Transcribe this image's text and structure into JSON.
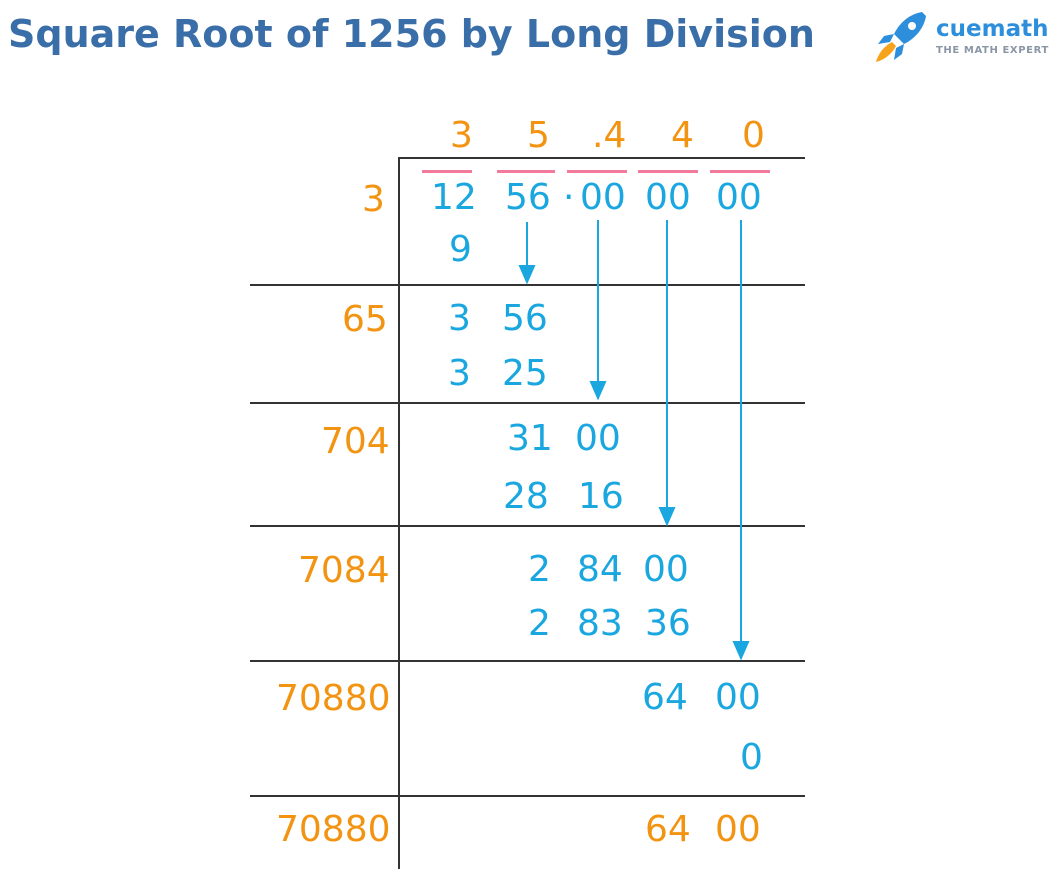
{
  "title": "Square Root of 1256 by Long Division",
  "logo": {
    "brand": "cuemath",
    "tagline": "THE MATH EXPERT",
    "icon": "rocket-icon"
  },
  "colors": {
    "title": "#3a6ea8",
    "divisor": "#f29412",
    "work": "#1aa7df",
    "overbar": "#f47a9b"
  },
  "quotient": {
    "d1": "3",
    "d2": "5",
    "d3": ".4",
    "d4": "4",
    "d5": "0"
  },
  "dividend": {
    "g1": "12",
    "g2": "56",
    "dot": "·",
    "g3": "00",
    "g4": "00",
    "g5": "00"
  },
  "divisors": {
    "r1": "3",
    "r2": "65",
    "r3": "704",
    "r4": "7084",
    "r5": "70880",
    "r6": "70880"
  },
  "steps": {
    "s1_sub": "9",
    "s2_rem_a": "3",
    "s2_rem_b": "56",
    "s2_sub_a": "3",
    "s2_sub_b": "25",
    "s3_rem_a": "31",
    "s3_rem_b": "00",
    "s3_sub_a": "28",
    "s3_sub_b": "16",
    "s4_rem_a": "2",
    "s4_rem_b": "84",
    "s4_rem_c": "00",
    "s4_sub_a": "2",
    "s4_sub_b": "83",
    "s4_sub_c": "36",
    "s5_rem_a": "64",
    "s5_rem_b": "00",
    "s5_sub": "0",
    "final_a": "64",
    "final_b": "00"
  }
}
